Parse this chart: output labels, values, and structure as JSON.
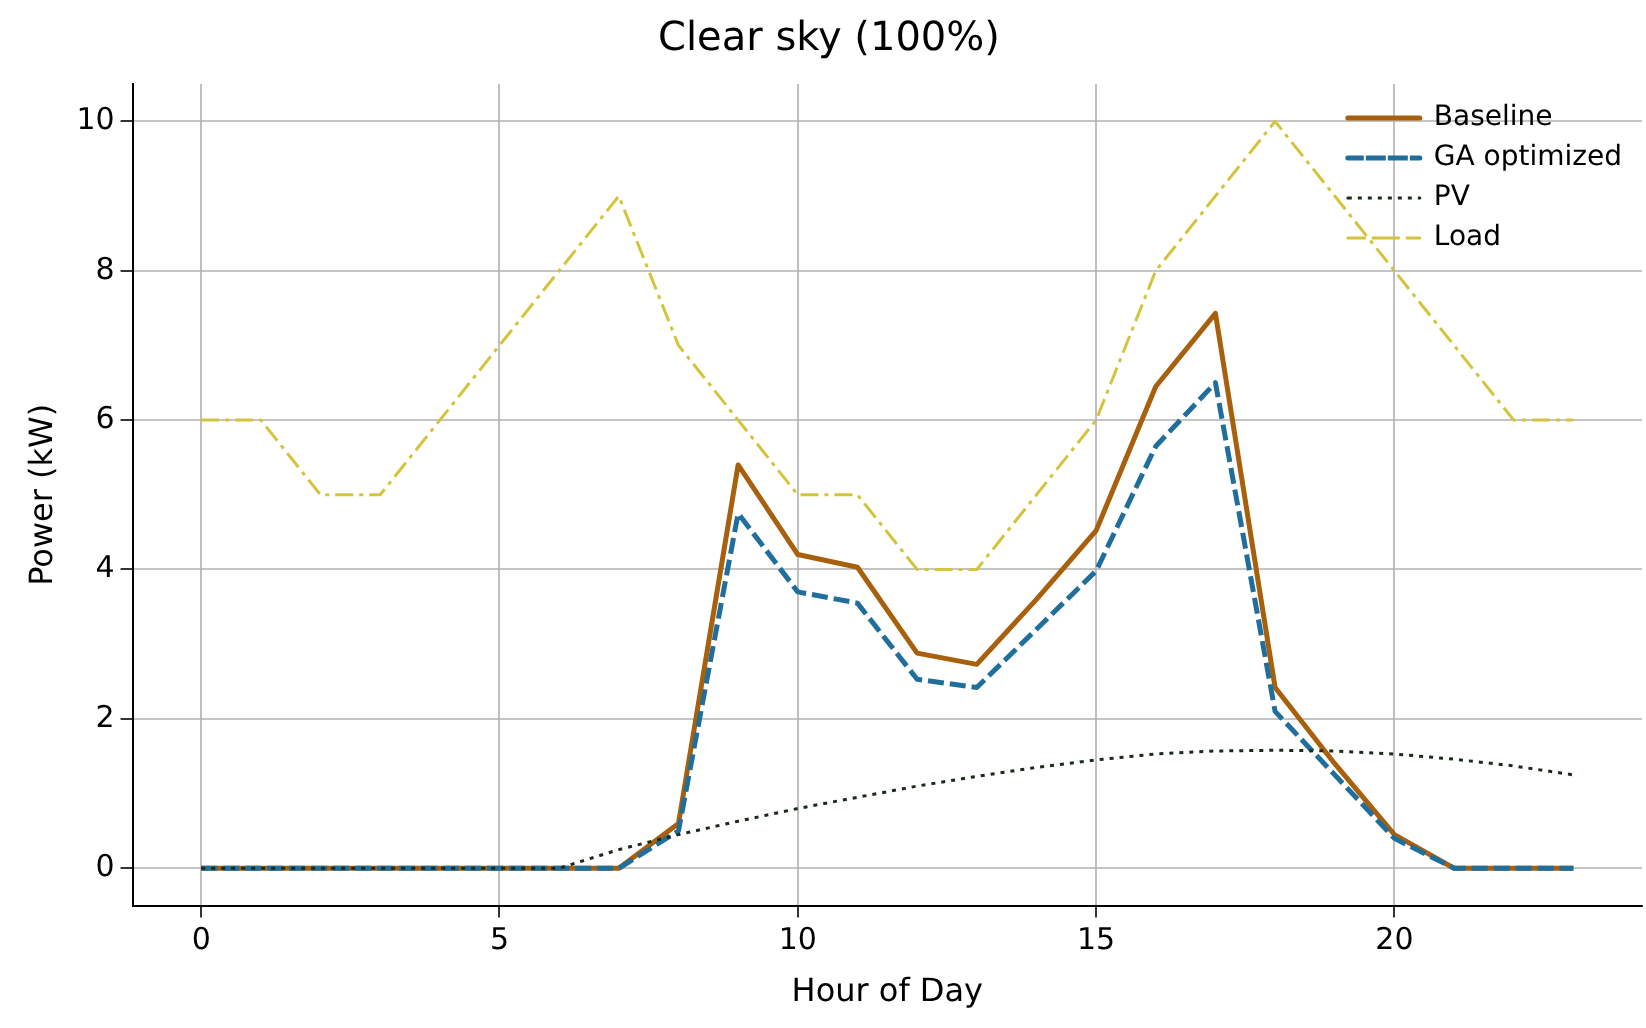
{
  "chart_data": {
    "type": "line",
    "title": "Clear sky (100%)",
    "xlabel": "Hour of Day",
    "ylabel": "Power (kW)",
    "x": [
      0,
      1,
      2,
      3,
      4,
      5,
      6,
      7,
      8,
      9,
      10,
      11,
      12,
      13,
      14,
      15,
      16,
      17,
      18,
      19,
      20,
      21,
      22,
      23
    ],
    "series": [
      {
        "name": "Baseline",
        "color": "#a8600c",
        "line_style": "solid",
        "values": [
          0,
          0,
          0,
          0,
          0,
          0,
          0,
          0,
          0.6,
          5.4,
          4.2,
          4.03,
          2.88,
          2.73,
          3.6,
          4.52,
          6.45,
          7.43,
          2.42,
          1.4,
          0.45,
          0,
          0,
          0
        ]
      },
      {
        "name": "GA optimized",
        "color": "#1f6e9c",
        "line_style": "dashed",
        "values": [
          0,
          0,
          0,
          0,
          0,
          0,
          0,
          0,
          0.5,
          4.75,
          3.7,
          3.55,
          2.53,
          2.42,
          3.2,
          3.98,
          5.65,
          6.5,
          2.1,
          1.25,
          0.4,
          0,
          0,
          0
        ]
      },
      {
        "name": "PV",
        "color": "#1b2b1b",
        "line_style": "dotted",
        "values": [
          0,
          0,
          0,
          0,
          0,
          0,
          0,
          0.25,
          0.45,
          0.63,
          0.8,
          0.95,
          1.1,
          1.23,
          1.35,
          1.45,
          1.53,
          1.57,
          1.58,
          1.57,
          1.53,
          1.46,
          1.37,
          1.25
        ]
      },
      {
        "name": "Load",
        "color": "#d4c43c",
        "line_style": "dashdot",
        "values": [
          6,
          6,
          5,
          5,
          6,
          7,
          8,
          9,
          7,
          6,
          5,
          5,
          4,
          4,
          5,
          6,
          8,
          9,
          10,
          9,
          8,
          7,
          6,
          6
        ]
      }
    ],
    "xlim": [
      -1.15,
      24.15
    ],
    "xticks": [
      0,
      5,
      10,
      15,
      20
    ],
    "ylim": [
      -0.5,
      10.5
    ],
    "yticks": [
      0,
      2,
      4,
      6,
      8,
      10
    ],
    "grid": true,
    "legend": "top right",
    "marker": "none"
  }
}
